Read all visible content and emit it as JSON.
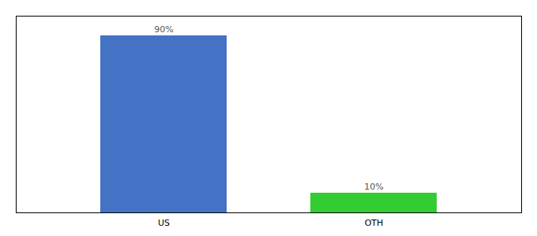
{
  "chart_data": {
    "type": "bar",
    "categories": [
      "US",
      "OTH"
    ],
    "values": [
      90,
      10
    ],
    "value_labels": [
      "90%",
      "10%"
    ],
    "colors": [
      "#4472c4",
      "#33cc33"
    ],
    "ylim": [
      0,
      100
    ],
    "data_labels": true,
    "tick_labels": "x",
    "grid": false
  }
}
